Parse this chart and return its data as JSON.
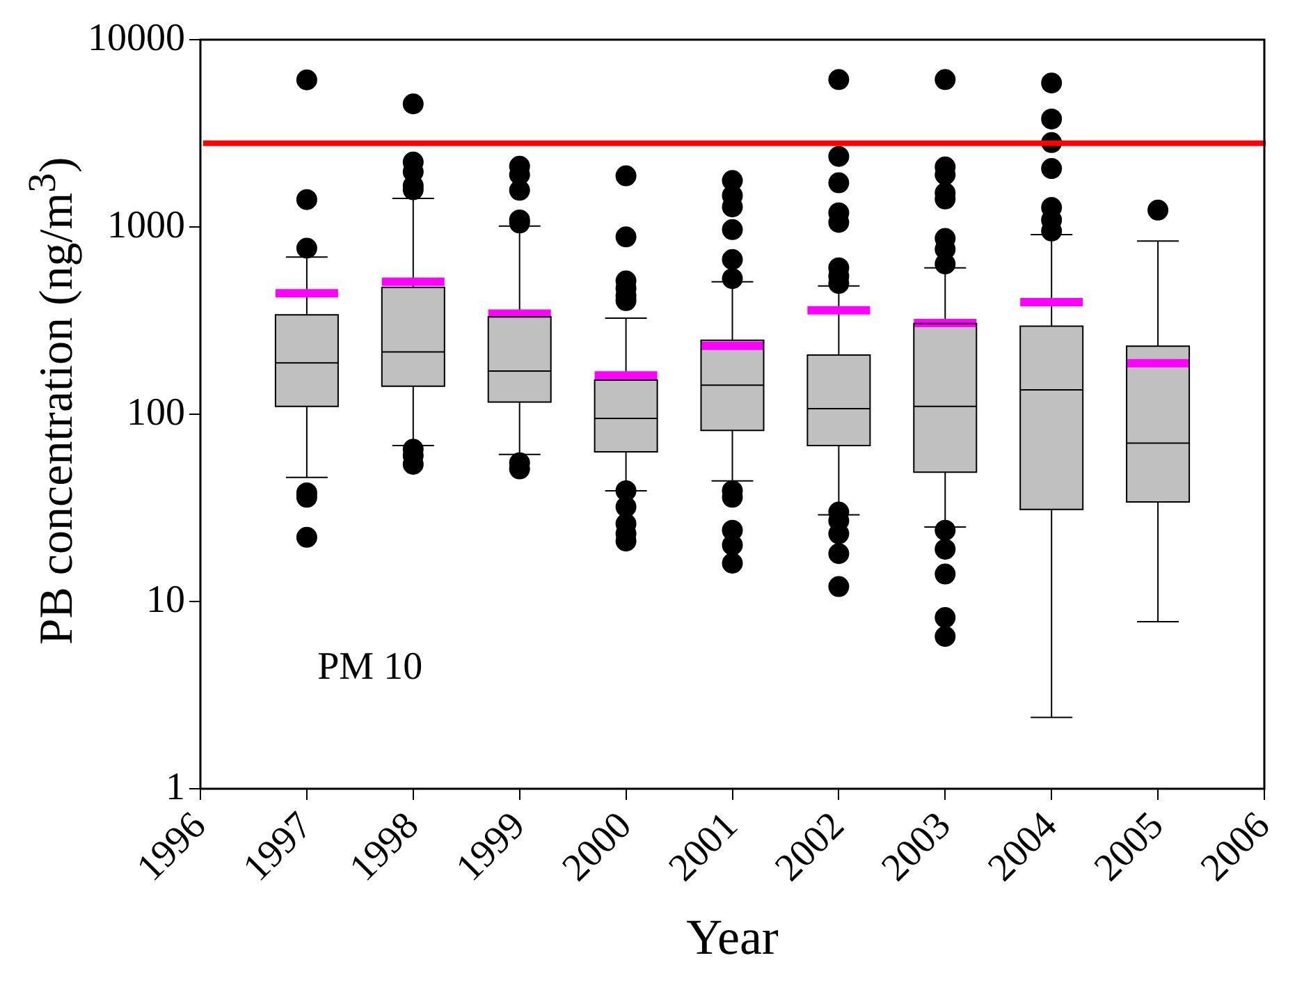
{
  "chart_data": {
    "type": "box",
    "xlabel": "Year",
    "ylabel": "PB concentration (ng/m$^{3}$)",
    "annotations": [
      "PM 10"
    ],
    "x": [
      1997,
      1998,
      1999,
      2000,
      2001,
      2002,
      2003,
      2004,
      2005
    ],
    "color": "#c0c0c0",
    "marker": "circle",
    "log": "y",
    "xlim": [
      1996,
      2006
    ],
    "xticks": [
      1996,
      1997,
      1998,
      1999,
      2000,
      2001,
      2002,
      2003,
      2004,
      2005,
      2006
    ],
    "ylim": [
      1,
      10000
    ],
    "yticks": [
      1,
      10,
      100,
      1000,
      10000
    ],
    "ref_lines": [
      {
        "axis": "y",
        "value": 2800,
        "color": "#ff0000"
      }
    ],
    "boxes": [
      {
        "low": 46,
        "q1": 110,
        "median": 188,
        "q3": 339,
        "high": 690,
        "mean": 442,
        "outliers": [
          6100,
          1400,
          770,
          38,
          36,
          22
        ]
      },
      {
        "low": 68,
        "q1": 141,
        "median": 215,
        "q3": 476,
        "high": 1420,
        "mean": 509,
        "outliers": [
          4540,
          2220,
          1970,
          1660,
          1580,
          65,
          60,
          54
        ]
      },
      {
        "low": 61,
        "q1": 116,
        "median": 170,
        "q3": 331,
        "high": 1010,
        "mean": 344,
        "outliers": [
          2110,
          1900,
          1570,
          1090,
          1050,
          55,
          51
        ]
      },
      {
        "low": 39,
        "q1": 63,
        "median": 95,
        "q3": 152,
        "high": 326,
        "mean": 161,
        "outliers": [
          1875,
          884,
          515,
          470,
          429,
          404,
          39,
          32,
          26,
          23,
          21
        ]
      },
      {
        "low": 44,
        "q1": 82,
        "median": 143,
        "q3": 248,
        "high": 509,
        "mean": 232,
        "outliers": [
          1770,
          1470,
          1280,
          968,
          670,
          530,
          39,
          36,
          24,
          20,
          16
        ]
      },
      {
        "low": 29,
        "q1": 68,
        "median": 107,
        "q3": 207,
        "high": 484,
        "mean": 359,
        "outliers": [
          6120,
          2380,
          1720,
          1190,
          1057,
          605,
          546,
          499,
          30,
          27,
          23,
          18,
          12
        ]
      },
      {
        "low": 25,
        "q1": 49,
        "median": 110,
        "q3": 305,
        "high": 605,
        "mean": 307,
        "outliers": [
          6120,
          2090,
          1900,
          1520,
          1410,
          868,
          760,
          634,
          24,
          19,
          14,
          8.2,
          6.5
        ]
      },
      {
        "low": 2.4,
        "q1": 31,
        "median": 135,
        "q3": 295,
        "high": 910,
        "mean": 397,
        "outliers": [
          5870,
          3770,
          2820,
          2050,
          1270,
          1090,
          950
        ]
      },
      {
        "low": 7.8,
        "q1": 34,
        "median": 70,
        "q3": 231,
        "high": 841,
        "mean": 187,
        "outliers": [
          1230
        ]
      }
    ]
  }
}
